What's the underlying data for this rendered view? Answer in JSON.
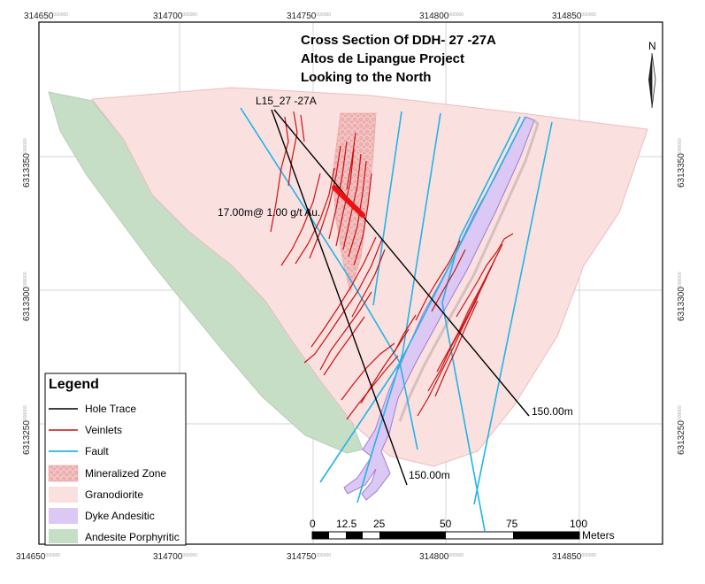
{
  "title": {
    "line1": "Cross Section Of DDH- 27 -27A",
    "line2": "Altos de Lipangue Project",
    "line3": "Looking to the North"
  },
  "axes": {
    "x_ticks": [
      {
        "main": "314650",
        "sup": "000000"
      },
      {
        "main": "314700",
        "sup": "000000"
      },
      {
        "main": "314750",
        "sup": "000000"
      },
      {
        "main": "314800",
        "sup": "000000"
      },
      {
        "main": "314850",
        "sup": "000000"
      }
    ],
    "y_ticks": [
      {
        "main": "6313350",
        "sup": "000000"
      },
      {
        "main": "6313300",
        "sup": "000000"
      },
      {
        "main": "6313250",
        "sup": "000000"
      }
    ]
  },
  "north_arrow": {
    "label": "N"
  },
  "annotations": {
    "hole_label": "L15_27 -27A",
    "intercept": "17.00m@ 1.00 g/t Au.",
    "depth_a": "150.00m",
    "depth_b": "150.00m"
  },
  "scale_bar": {
    "labels": [
      "0",
      "12.5",
      "25",
      "50",
      "75",
      "100"
    ],
    "unit": "Meters"
  },
  "legend": {
    "title": "Legend",
    "items": [
      {
        "label": "Hole Trace",
        "symbol": "line",
        "color": "#000000"
      },
      {
        "label": "Veinlets",
        "symbol": "line",
        "color": "#cc1111"
      },
      {
        "label": "Fault",
        "symbol": "line",
        "color": "#20b4e6"
      },
      {
        "label": "Mineralized Zone",
        "symbol": "patch",
        "color": "#f2b8b8"
      },
      {
        "label": "Granodiorite",
        "symbol": "patch",
        "color": "#fbe0e0"
      },
      {
        "label": "Dyke Andesitic",
        "symbol": "patch",
        "color": "#dcc8f4"
      },
      {
        "label": "Andesite Porphyritic",
        "symbol": "patch",
        "color": "#c6dec6"
      }
    ]
  },
  "colors": {
    "granodiorite": "#fbe0e0",
    "granodiorite_edge": "#eebcbc",
    "andesite": "#c6dec6",
    "dyke": "#dcc8f4",
    "dyke_edge": "#9c7cd4",
    "mineralized": "#f2b8b8",
    "fault": "#20b4e6",
    "veinlet": "#cc1111",
    "hole": "#000000",
    "intercept": "#ee1111",
    "grid": "#d6d6d6"
  }
}
